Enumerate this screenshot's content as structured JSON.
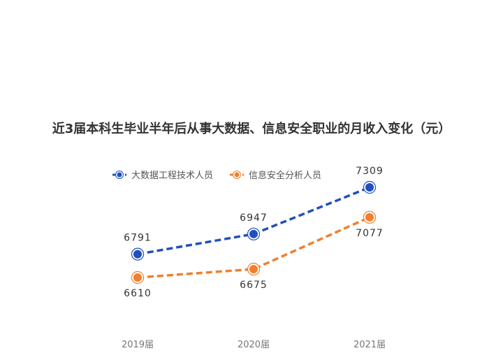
{
  "chart_data": {
    "type": "line",
    "title": "近3届本科生毕业半年后从事大数据、信息安全职业的月收入变化（元）",
    "xlabel": "",
    "ylabel": "",
    "categories": [
      "2019届",
      "2020届",
      "2021届"
    ],
    "ylim": [
      6500,
      7400
    ],
    "grid": false,
    "legend_position": "top-center",
    "series": [
      {
        "name": "大数据工程技术人员",
        "values": [
          6791,
          6947,
          7309
        ],
        "color": "#1f4fc1",
        "label_position": "above"
      },
      {
        "name": "信息安全分析人员",
        "values": [
          6610,
          6675,
          7077
        ],
        "color": "#f07f2e",
        "label_position": "below"
      }
    ]
  }
}
